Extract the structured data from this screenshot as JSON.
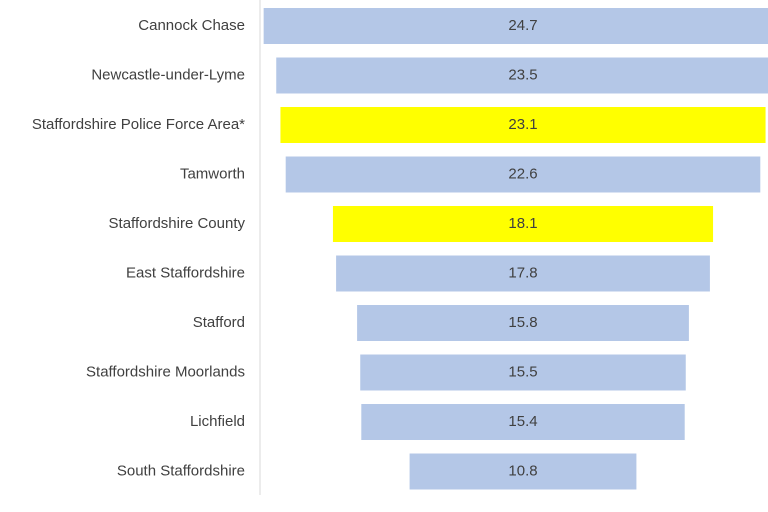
{
  "chart_data": {
    "type": "funnel",
    "categories": [
      "Cannock Chase",
      "Newcastle-under-Lyme",
      "Staffordshire Police Force Area*",
      "Tamworth",
      "Staffordshire County",
      "East Staffordshire",
      "Stafford",
      "Staffordshire Moorlands",
      "Lichfield",
      "South Staffordshire"
    ],
    "values": [
      24.7,
      23.5,
      23.1,
      22.6,
      18.1,
      17.8,
      15.8,
      15.5,
      15.4,
      10.8
    ],
    "colors": [
      "#b4c7e7",
      "#b4c7e7",
      "#ffff00",
      "#b4c7e7",
      "#ffff00",
      "#b4c7e7",
      "#b4c7e7",
      "#b4c7e7",
      "#b4c7e7",
      "#b4c7e7"
    ]
  }
}
